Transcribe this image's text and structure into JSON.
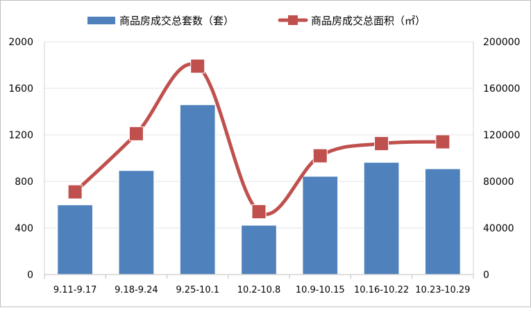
{
  "chart_data": {
    "type": "bar",
    "categories": [
      "9.11-9.17",
      "9.18-9.24",
      "9.25-10.1",
      "10.2-10.8",
      "10.9-10.15",
      "10.16-10.22",
      "10.23-10.29"
    ],
    "series": [
      {
        "name": "商品房成交总套数（套）",
        "type": "bar",
        "axis": "left",
        "color": "#4F81BD",
        "values": [
          600,
          895,
          1460,
          425,
          845,
          965,
          910
        ]
      },
      {
        "name": "商品房成交总面积（㎡）",
        "type": "line",
        "smooth": true,
        "marker": "square",
        "axis": "right",
        "color": "#C0504D",
        "values": [
          71000,
          121000,
          179000,
          54000,
          102000,
          112500,
          114000
        ]
      }
    ],
    "y_left": {
      "ylim": [
        0,
        2000
      ],
      "ticks": [
        "0",
        "400",
        "800",
        "1200",
        "1600",
        "2000"
      ]
    },
    "y_right": {
      "ylim": [
        0,
        200000
      ],
      "ticks": [
        "0",
        "40000",
        "80000",
        "120000",
        "160000",
        "200000"
      ]
    },
    "grid": true,
    "legend_position": "top"
  }
}
